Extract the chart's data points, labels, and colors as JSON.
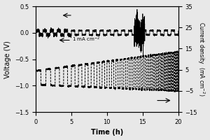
{
  "title": "",
  "xlabel": "Time (h)",
  "ylabel_left": "Voltage (V)",
  "ylabel_right": "Current density  （mA cm⁻²）",
  "xlim": [
    0,
    20
  ],
  "ylim_left": [
    -1.5,
    0.5
  ],
  "ylim_right": [
    -15,
    35
  ],
  "yticks_left": [
    -1.5,
    -1.0,
    -0.5,
    0.0,
    0.5
  ],
  "yticks_right": [
    -15,
    -5,
    5,
    15,
    25,
    35
  ],
  "xticks": [
    0,
    5,
    10,
    15,
    20
  ],
  "background_color": "#e8e8e8"
}
